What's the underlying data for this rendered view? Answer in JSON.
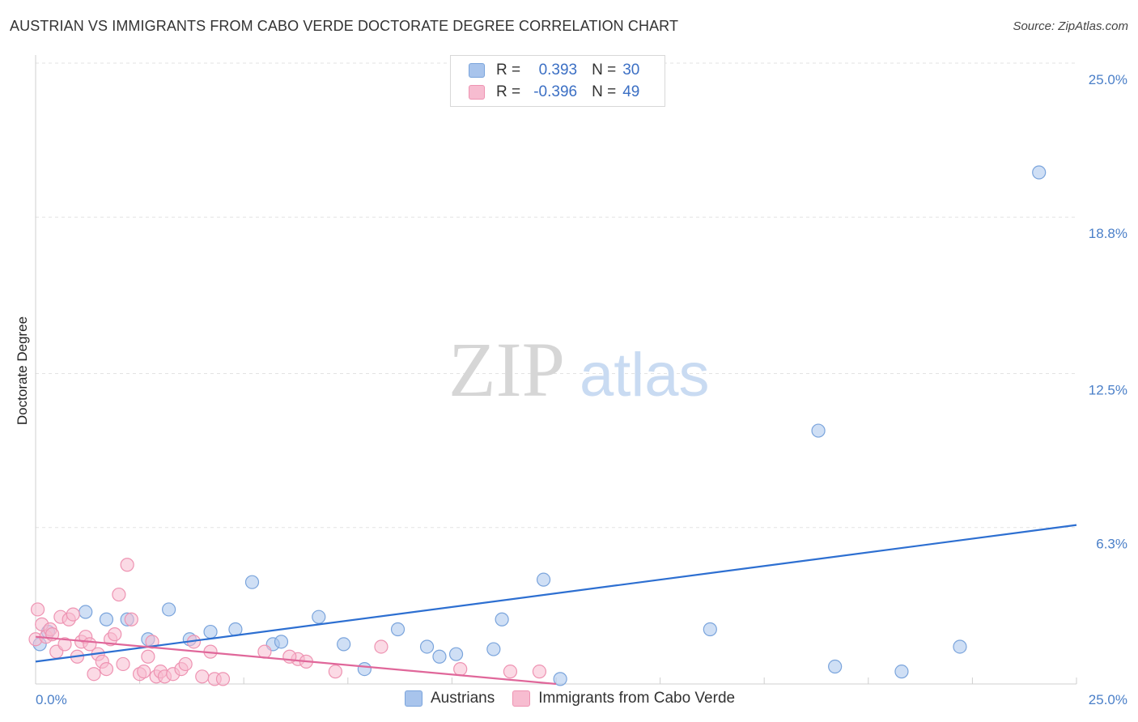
{
  "title": "AUSTRIAN VS IMMIGRANTS FROM CABO VERDE DOCTORATE DEGREE CORRELATION CHART",
  "source": "Source: ZipAtlas.com",
  "watermark": {
    "zip": "ZIP",
    "atlas": "atlas"
  },
  "legend": {
    "rows": [
      {
        "r_label": "R =",
        "r_value": "0.393",
        "n_label": "N =",
        "n_value": "30",
        "color": "#a8c4ec",
        "stroke": "#7aa4dc"
      },
      {
        "r_label": "R =",
        "r_value": "-0.396",
        "n_label": "N =",
        "n_value": "49",
        "color": "#f7bcd0",
        "stroke": "#ee93b2"
      }
    ]
  },
  "bottom_legend": {
    "austrians": "Austrians",
    "cabo_verde": "Immigrants from Cabo Verde"
  },
  "chart_data": {
    "type": "scatter",
    "title": "AUSTRIAN VS IMMIGRANTS FROM CABO VERDE DOCTORATE DEGREE CORRELATION CHART",
    "xlabel": "",
    "ylabel": "Doctorate Degree",
    "xlim": [
      0,
      25
    ],
    "ylim": [
      0,
      25
    ],
    "x_tick_labels": [
      "0.0%",
      "25.0%"
    ],
    "y_ticks": [
      6.3,
      12.5,
      18.8,
      25.0
    ],
    "y_tick_labels": [
      "6.3%",
      "12.5%",
      "18.8%",
      "25.0%"
    ],
    "grid": true,
    "series": [
      {
        "name": "Austrians",
        "color": "#a8c4ec",
        "stroke": "#7aa4dc",
        "line_color": "#2d6fd1",
        "trend": {
          "x": [
            0,
            25
          ],
          "y": [
            0.9,
            6.4
          ]
        },
        "points": [
          [
            0.1,
            1.6
          ],
          [
            0.3,
            2.1
          ],
          [
            1.2,
            2.9
          ],
          [
            1.7,
            2.6
          ],
          [
            2.2,
            2.6
          ],
          [
            2.7,
            1.8
          ],
          [
            3.2,
            3.0
          ],
          [
            3.7,
            1.8
          ],
          [
            4.2,
            2.1
          ],
          [
            4.8,
            2.2
          ],
          [
            5.2,
            4.1
          ],
          [
            5.7,
            1.6
          ],
          [
            5.9,
            1.7
          ],
          [
            6.8,
            2.7
          ],
          [
            7.4,
            1.6
          ],
          [
            7.9,
            0.6
          ],
          [
            8.7,
            2.2
          ],
          [
            9.4,
            1.5
          ],
          [
            9.7,
            1.1
          ],
          [
            10.1,
            1.2
          ],
          [
            11.0,
            1.4
          ],
          [
            11.2,
            2.6
          ],
          [
            12.2,
            4.2
          ],
          [
            12.6,
            0.2
          ],
          [
            16.2,
            2.2
          ],
          [
            18.8,
            10.2
          ],
          [
            19.2,
            0.7
          ],
          [
            20.8,
            0.5
          ],
          [
            22.2,
            1.5
          ],
          [
            24.1,
            20.6
          ]
        ]
      },
      {
        "name": "Immigrants from Cabo Verde",
        "color": "#f7bcd0",
        "stroke": "#ee93b2",
        "line_color": "#e0679a",
        "trend": {
          "x": [
            0,
            12.5
          ],
          "y": [
            1.9,
            0.0
          ]
        },
        "points": [
          [
            0.0,
            1.8
          ],
          [
            0.05,
            3.0
          ],
          [
            0.15,
            2.4
          ],
          [
            0.25,
            1.9
          ],
          [
            0.35,
            2.2
          ],
          [
            0.4,
            2.0
          ],
          [
            0.5,
            1.3
          ],
          [
            0.6,
            2.7
          ],
          [
            0.7,
            1.6
          ],
          [
            0.8,
            2.6
          ],
          [
            0.9,
            2.8
          ],
          [
            1.0,
            1.1
          ],
          [
            1.1,
            1.7
          ],
          [
            1.2,
            1.9
          ],
          [
            1.3,
            1.6
          ],
          [
            1.4,
            0.4
          ],
          [
            1.5,
            1.2
          ],
          [
            1.6,
            0.9
          ],
          [
            1.7,
            0.6
          ],
          [
            1.8,
            1.8
          ],
          [
            1.9,
            2.0
          ],
          [
            2.0,
            3.6
          ],
          [
            2.1,
            0.8
          ],
          [
            2.2,
            4.8
          ],
          [
            2.3,
            2.6
          ],
          [
            2.5,
            0.4
          ],
          [
            2.6,
            0.5
          ],
          [
            2.7,
            1.1
          ],
          [
            2.8,
            1.7
          ],
          [
            2.9,
            0.3
          ],
          [
            3.0,
            0.5
          ],
          [
            3.1,
            0.3
          ],
          [
            3.3,
            0.4
          ],
          [
            3.5,
            0.6
          ],
          [
            3.6,
            0.8
          ],
          [
            3.8,
            1.7
          ],
          [
            4.0,
            0.3
          ],
          [
            4.2,
            1.3
          ],
          [
            4.3,
            0.2
          ],
          [
            4.5,
            0.2
          ],
          [
            5.5,
            1.3
          ],
          [
            6.3,
            1.0
          ],
          [
            6.5,
            0.9
          ],
          [
            7.2,
            0.5
          ],
          [
            8.3,
            1.5
          ],
          [
            10.2,
            0.6
          ],
          [
            11.4,
            0.5
          ],
          [
            12.1,
            0.5
          ],
          [
            6.1,
            1.1
          ]
        ]
      }
    ]
  }
}
